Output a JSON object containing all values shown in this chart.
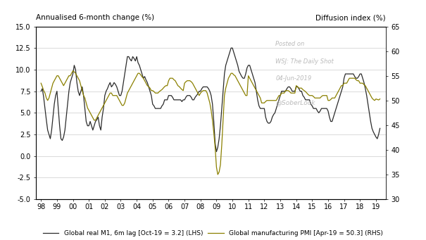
{
  "title_left": "Annualised 6-month change (%)",
  "title_right": "Diffusion index (%)",
  "legend_line1": "Global real M1, 6m lag [Oct-19 = 3.2] (LHS)",
  "legend_line2": "Global manufacturing PMI [Apr-19 = 50.3] (RHS)",
  "watermark1": "Posted on",
  "watermark2": "WSJ: The Daily Shot",
  "watermark3": "04-Jun-2019",
  "watermark4": "@SoberLook",
  "color_m1": "#2b2b2b",
  "color_pmi": "#8B8000",
  "ylim_left": [
    -5.0,
    15.0
  ],
  "ylim_right": [
    30,
    65
  ],
  "yticks_left": [
    -5.0,
    -2.5,
    0.0,
    2.5,
    5.0,
    7.5,
    10.0,
    12.5,
    15.0
  ],
  "yticks_right": [
    30,
    35,
    40,
    45,
    50,
    55,
    60,
    65
  ],
  "xtick_labels": [
    "98",
    "99",
    "00",
    "01",
    "02",
    "03",
    "04",
    "05",
    "06",
    "07",
    "08",
    "09",
    "10",
    "11",
    "12",
    "13",
    "14",
    "15",
    "16",
    "17",
    "18",
    "19"
  ],
  "m1_x": [
    1998.0,
    1998.083,
    1998.167,
    1998.25,
    1998.333,
    1998.417,
    1998.5,
    1998.583,
    1998.667,
    1998.75,
    1998.833,
    1998.917,
    1999.0,
    1999.083,
    1999.167,
    1999.25,
    1999.333,
    1999.417,
    1999.5,
    1999.583,
    1999.667,
    1999.75,
    1999.833,
    1999.917,
    2000.0,
    2000.083,
    2000.167,
    2000.25,
    2000.333,
    2000.417,
    2000.5,
    2000.583,
    2000.667,
    2000.75,
    2000.833,
    2000.917,
    2001.0,
    2001.083,
    2001.167,
    2001.25,
    2001.333,
    2001.417,
    2001.5,
    2001.583,
    2001.667,
    2001.75,
    2001.833,
    2001.917,
    2002.0,
    2002.083,
    2002.167,
    2002.25,
    2002.333,
    2002.417,
    2002.5,
    2002.583,
    2002.667,
    2002.75,
    2002.833,
    2002.917,
    2003.0,
    2003.083,
    2003.167,
    2003.25,
    2003.333,
    2003.417,
    2003.5,
    2003.583,
    2003.667,
    2003.75,
    2003.833,
    2003.917,
    2004.0,
    2004.083,
    2004.167,
    2004.25,
    2004.333,
    2004.417,
    2004.5,
    2004.583,
    2004.667,
    2004.75,
    2004.833,
    2004.917,
    2005.0,
    2005.083,
    2005.167,
    2005.25,
    2005.333,
    2005.417,
    2005.5,
    2005.583,
    2005.667,
    2005.75,
    2005.833,
    2005.917,
    2006.0,
    2006.083,
    2006.167,
    2006.25,
    2006.333,
    2006.417,
    2006.5,
    2006.583,
    2006.667,
    2006.75,
    2006.833,
    2006.917,
    2007.0,
    2007.083,
    2007.167,
    2007.25,
    2007.333,
    2007.417,
    2007.5,
    2007.583,
    2007.667,
    2007.75,
    2007.833,
    2007.917,
    2008.0,
    2008.083,
    2008.167,
    2008.25,
    2008.333,
    2008.417,
    2008.5,
    2008.583,
    2008.667,
    2008.75,
    2008.833,
    2008.917,
    2009.0,
    2009.083,
    2009.167,
    2009.25,
    2009.333,
    2009.417,
    2009.5,
    2009.583,
    2009.667,
    2009.75,
    2009.833,
    2009.917,
    2010.0,
    2010.083,
    2010.167,
    2010.25,
    2010.333,
    2010.417,
    2010.5,
    2010.583,
    2010.667,
    2010.75,
    2010.833,
    2010.917,
    2011.0,
    2011.083,
    2011.167,
    2011.25,
    2011.333,
    2011.417,
    2011.5,
    2011.583,
    2011.667,
    2011.75,
    2011.833,
    2011.917,
    2012.0,
    2012.083,
    2012.167,
    2012.25,
    2012.333,
    2012.417,
    2012.5,
    2012.583,
    2012.667,
    2012.75,
    2012.833,
    2012.917,
    2013.0,
    2013.083,
    2013.167,
    2013.25,
    2013.333,
    2013.417,
    2013.5,
    2013.583,
    2013.667,
    2013.75,
    2013.833,
    2013.917,
    2014.0,
    2014.083,
    2014.167,
    2014.25,
    2014.333,
    2014.417,
    2014.5,
    2014.583,
    2014.667,
    2014.75,
    2014.833,
    2014.917,
    2015.0,
    2015.083,
    2015.167,
    2015.25,
    2015.333,
    2015.417,
    2015.5,
    2015.583,
    2015.667,
    2015.75,
    2015.833,
    2015.917,
    2016.0,
    2016.083,
    2016.167,
    2016.25,
    2016.333,
    2016.417,
    2016.5,
    2016.583,
    2016.667,
    2016.75,
    2016.833,
    2016.917,
    2017.0,
    2017.083,
    2017.167,
    2017.25,
    2017.333,
    2017.417,
    2017.5,
    2017.583,
    2017.667,
    2017.75,
    2017.833,
    2017.917,
    2018.0,
    2018.083,
    2018.167,
    2018.25,
    2018.333,
    2018.417,
    2018.5,
    2018.583,
    2018.667,
    2018.75,
    2018.833,
    2018.917,
    2019.0,
    2019.083,
    2019.167,
    2019.25
  ],
  "m1_y": [
    7.5,
    7.8,
    6.8,
    5.5,
    4.2,
    3.0,
    2.5,
    2.0,
    3.0,
    4.5,
    6.0,
    7.0,
    7.5,
    5.5,
    3.5,
    2.0,
    1.8,
    2.2,
    3.0,
    4.5,
    6.0,
    7.5,
    8.5,
    9.0,
    9.5,
    10.5,
    10.0,
    8.5,
    7.5,
    7.0,
    7.5,
    8.0,
    7.0,
    5.5,
    4.0,
    3.5,
    3.5,
    4.0,
    3.5,
    3.0,
    3.5,
    4.0,
    4.2,
    4.5,
    3.5,
    3.0,
    4.5,
    5.5,
    7.0,
    7.5,
    7.8,
    8.2,
    8.5,
    8.0,
    8.2,
    8.5,
    8.3,
    8.0,
    7.5,
    7.0,
    7.0,
    7.5,
    8.5,
    9.5,
    10.5,
    11.5,
    11.5,
    11.2,
    11.0,
    11.5,
    11.3,
    11.0,
    11.5,
    10.8,
    10.5,
    10.0,
    9.5,
    9.0,
    9.2,
    8.8,
    8.5,
    8.0,
    7.5,
    7.0,
    6.0,
    5.8,
    5.5,
    5.5,
    5.5,
    5.5,
    5.5,
    5.8,
    6.0,
    6.5,
    6.5,
    6.5,
    7.0,
    7.0,
    7.0,
    6.8,
    6.5,
    6.5,
    6.5,
    6.5,
    6.5,
    6.5,
    6.3,
    6.5,
    6.5,
    6.8,
    7.0,
    7.0,
    7.0,
    6.8,
    6.5,
    6.5,
    6.8,
    7.0,
    7.2,
    7.5,
    7.5,
    7.8,
    8.0,
    8.0,
    8.0,
    8.0,
    7.8,
    7.5,
    7.0,
    6.0,
    4.0,
    1.5,
    0.5,
    1.0,
    2.0,
    3.5,
    5.5,
    7.5,
    9.5,
    10.5,
    11.0,
    11.5,
    12.0,
    12.5,
    12.5,
    12.0,
    11.5,
    11.0,
    10.5,
    9.8,
    9.5,
    9.2,
    9.0,
    9.0,
    9.5,
    10.2,
    10.5,
    10.5,
    10.0,
    9.5,
    9.0,
    8.5,
    7.5,
    6.5,
    5.8,
    5.5,
    5.5,
    5.5,
    5.5,
    4.5,
    4.0,
    3.8,
    3.8,
    4.0,
    4.5,
    4.8,
    5.0,
    5.5,
    6.0,
    6.5,
    7.0,
    7.5,
    7.5,
    7.5,
    7.5,
    7.8,
    8.0,
    8.0,
    7.8,
    7.5,
    7.5,
    7.5,
    8.0,
    8.0,
    7.8,
    7.5,
    7.5,
    7.0,
    6.8,
    6.5,
    6.5,
    6.5,
    6.5,
    6.0,
    5.8,
    5.5,
    5.5,
    5.5,
    5.2,
    5.0,
    5.2,
    5.5,
    5.5,
    5.5,
    5.5,
    5.5,
    5.2,
    4.5,
    4.0,
    4.0,
    4.5,
    5.0,
    5.5,
    6.0,
    6.5,
    7.0,
    7.5,
    8.0,
    9.0,
    9.5,
    9.5,
    9.5,
    9.5,
    9.5,
    9.5,
    9.5,
    9.2,
    9.0,
    9.0,
    9.2,
    9.5,
    9.5,
    9.0,
    8.5,
    7.8,
    7.0,
    6.0,
    5.0,
    4.0,
    3.2,
    2.8,
    2.5,
    2.2,
    2.0,
    2.5,
    3.2
  ],
  "pmi_x": [
    1998.0,
    1998.083,
    1998.167,
    1998.25,
    1998.333,
    1998.417,
    1998.5,
    1998.583,
    1998.667,
    1998.75,
    1998.833,
    1998.917,
    1999.0,
    1999.083,
    1999.167,
    1999.25,
    1999.333,
    1999.417,
    1999.5,
    1999.583,
    1999.667,
    1999.75,
    1999.833,
    1999.917,
    2000.0,
    2000.083,
    2000.167,
    2000.25,
    2000.333,
    2000.417,
    2000.5,
    2000.583,
    2000.667,
    2000.75,
    2000.833,
    2000.917,
    2001.0,
    2001.083,
    2001.167,
    2001.25,
    2001.333,
    2001.417,
    2001.5,
    2001.583,
    2001.667,
    2001.75,
    2001.833,
    2001.917,
    2002.0,
    2002.083,
    2002.167,
    2002.25,
    2002.333,
    2002.417,
    2002.5,
    2002.583,
    2002.667,
    2002.75,
    2002.833,
    2002.917,
    2003.0,
    2003.083,
    2003.167,
    2003.25,
    2003.333,
    2003.417,
    2003.5,
    2003.583,
    2003.667,
    2003.75,
    2003.833,
    2003.917,
    2004.0,
    2004.083,
    2004.167,
    2004.25,
    2004.333,
    2004.417,
    2004.5,
    2004.583,
    2004.667,
    2004.75,
    2004.833,
    2004.917,
    2005.0,
    2005.083,
    2005.167,
    2005.25,
    2005.333,
    2005.417,
    2005.5,
    2005.583,
    2005.667,
    2005.75,
    2005.833,
    2005.917,
    2006.0,
    2006.083,
    2006.167,
    2006.25,
    2006.333,
    2006.417,
    2006.5,
    2006.583,
    2006.667,
    2006.75,
    2006.833,
    2006.917,
    2007.0,
    2007.083,
    2007.167,
    2007.25,
    2007.333,
    2007.417,
    2007.5,
    2007.583,
    2007.667,
    2007.75,
    2007.833,
    2007.917,
    2008.0,
    2008.083,
    2008.167,
    2008.25,
    2008.333,
    2008.417,
    2008.5,
    2008.583,
    2008.667,
    2008.75,
    2008.833,
    2008.917,
    2009.0,
    2009.083,
    2009.167,
    2009.25,
    2009.333,
    2009.417,
    2009.5,
    2009.583,
    2009.667,
    2009.75,
    2009.833,
    2009.917,
    2010.0,
    2010.083,
    2010.167,
    2010.25,
    2010.333,
    2010.417,
    2010.5,
    2010.583,
    2010.667,
    2010.75,
    2010.833,
    2010.917,
    2011.0,
    2011.083,
    2011.167,
    2011.25,
    2011.333,
    2011.417,
    2011.5,
    2011.583,
    2011.667,
    2011.75,
    2011.833,
    2011.917,
    2012.0,
    2012.083,
    2012.167,
    2012.25,
    2012.333,
    2012.417,
    2012.5,
    2012.583,
    2012.667,
    2012.75,
    2012.833,
    2012.917,
    2013.0,
    2013.083,
    2013.167,
    2013.25,
    2013.333,
    2013.417,
    2013.5,
    2013.583,
    2013.667,
    2013.75,
    2013.833,
    2013.917,
    2014.0,
    2014.083,
    2014.167,
    2014.25,
    2014.333,
    2014.417,
    2014.5,
    2014.583,
    2014.667,
    2014.75,
    2014.833,
    2014.917,
    2015.0,
    2015.083,
    2015.167,
    2015.25,
    2015.333,
    2015.417,
    2015.5,
    2015.583,
    2015.667,
    2015.75,
    2015.833,
    2015.917,
    2016.0,
    2016.083,
    2016.167,
    2016.25,
    2016.333,
    2016.417,
    2016.5,
    2016.583,
    2016.667,
    2016.75,
    2016.833,
    2016.917,
    2017.0,
    2017.083,
    2017.167,
    2017.25,
    2017.333,
    2017.417,
    2017.5,
    2017.583,
    2017.667,
    2017.75,
    2017.833,
    2017.917,
    2018.0,
    2018.083,
    2018.167,
    2018.25,
    2018.333,
    2018.417,
    2018.5,
    2018.583,
    2018.667,
    2018.75,
    2018.833,
    2018.917,
    2019.0,
    2019.083,
    2019.167,
    2019.25
  ],
  "pmi_y": [
    53.5,
    52.8,
    52.0,
    51.5,
    50.5,
    50.0,
    50.5,
    51.5,
    52.5,
    53.5,
    54.0,
    54.5,
    55.0,
    55.0,
    54.5,
    54.0,
    53.5,
    53.0,
    53.5,
    54.0,
    54.5,
    55.0,
    55.0,
    55.5,
    56.0,
    55.8,
    55.5,
    55.0,
    54.5,
    54.0,
    53.0,
    52.0,
    51.0,
    50.5,
    49.5,
    48.5,
    48.0,
    47.5,
    47.0,
    46.5,
    46.0,
    46.0,
    46.5,
    47.0,
    47.5,
    48.0,
    48.5,
    49.0,
    49.5,
    50.0,
    50.5,
    51.0,
    51.5,
    51.5,
    51.0,
    51.0,
    51.0,
    51.0,
    50.5,
    50.0,
    49.5,
    49.0,
    49.0,
    49.5,
    50.5,
    51.5,
    52.0,
    52.5,
    53.0,
    53.5,
    54.0,
    54.5,
    55.0,
    55.5,
    55.5,
    55.2,
    54.8,
    54.5,
    54.0,
    53.5,
    53.0,
    52.8,
    52.5,
    52.0,
    52.0,
    51.8,
    51.5,
    51.5,
    51.5,
    51.8,
    52.0,
    52.2,
    52.5,
    52.8,
    53.0,
    53.0,
    54.0,
    54.5,
    54.5,
    54.5,
    54.2,
    54.0,
    53.5,
    53.0,
    52.8,
    52.5,
    52.2,
    52.0,
    53.5,
    53.8,
    54.0,
    54.0,
    54.0,
    53.8,
    53.5,
    53.0,
    52.5,
    52.0,
    51.5,
    51.0,
    51.5,
    51.8,
    52.0,
    52.0,
    52.0,
    51.5,
    50.5,
    49.5,
    48.0,
    46.0,
    43.5,
    40.5,
    36.5,
    35.0,
    35.5,
    37.0,
    41.0,
    46.0,
    51.0,
    52.5,
    53.5,
    54.5,
    55.0,
    55.5,
    55.5,
    55.2,
    55.0,
    54.5,
    54.0,
    53.5,
    53.0,
    52.5,
    52.0,
    51.5,
    51.0,
    51.0,
    55.0,
    54.5,
    54.0,
    53.5,
    53.0,
    52.5,
    52.0,
    51.5,
    51.0,
    50.5,
    49.5,
    49.5,
    49.5,
    49.8,
    50.0,
    50.0,
    50.0,
    50.0,
    50.0,
    50.0,
    50.0,
    50.0,
    50.5,
    51.0,
    51.0,
    51.5,
    51.5,
    51.5,
    52.0,
    52.0,
    52.0,
    51.8,
    51.5,
    51.5,
    51.5,
    51.5,
    53.0,
    52.8,
    52.5,
    52.5,
    52.5,
    52.2,
    52.0,
    51.8,
    51.5,
    51.2,
    51.0,
    51.0,
    51.0,
    50.8,
    50.5,
    50.5,
    50.5,
    50.5,
    50.5,
    50.8,
    51.0,
    51.0,
    51.0,
    51.0,
    50.0,
    50.0,
    50.2,
    50.5,
    50.5,
    50.5,
    51.0,
    51.5,
    52.0,
    52.5,
    53.0,
    53.0,
    53.5,
    53.5,
    53.5,
    54.0,
    54.5,
    54.5,
    54.5,
    54.5,
    54.5,
    54.2,
    54.0,
    54.0,
    53.5,
    53.5,
    53.5,
    53.2,
    53.0,
    52.5,
    52.0,
    51.5,
    51.0,
    50.5,
    50.2,
    50.0,
    50.3,
    50.2,
    50.1,
    50.3
  ]
}
